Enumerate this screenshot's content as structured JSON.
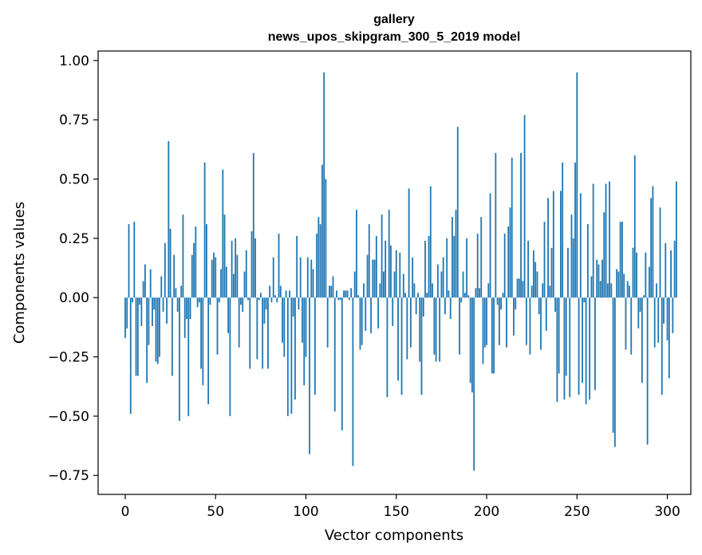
{
  "chart_data": {
    "type": "bar",
    "title_line1": "gallery",
    "title_line2": "news_upos_skipgram_300_5_2019 model",
    "xlabel": "Vector components",
    "ylabel": "Components values",
    "xlim": [
      -15,
      313
    ],
    "ylim": [
      -0.83,
      1.04
    ],
    "xticks": [
      0,
      50,
      100,
      150,
      200,
      250,
      300
    ],
    "xtick_labels": [
      "0",
      "50",
      "100",
      "150",
      "200",
      "250",
      "300"
    ],
    "yticks": [
      -0.75,
      -0.5,
      -0.25,
      0.0,
      0.25,
      0.5,
      0.75,
      1.0
    ],
    "ytick_labels": [
      "−0.75",
      "−0.50",
      "−0.25",
      "0.00",
      "0.25",
      "0.50",
      "0.75",
      "1.00"
    ],
    "bar_color": "#1f77b4",
    "grid": false,
    "values": [
      -0.17,
      -0.13,
      0.31,
      -0.49,
      -0.02,
      0.32,
      -0.33,
      -0.33,
      -0.03,
      -0.12,
      0.07,
      0.14,
      -0.36,
      -0.2,
      0.12,
      -0.12,
      -0.05,
      -0.27,
      -0.28,
      -0.25,
      0.09,
      -0.06,
      0.23,
      -0.11,
      0.66,
      0.29,
      -0.33,
      0.18,
      0.04,
      -0.06,
      -0.52,
      0.05,
      0.35,
      -0.17,
      -0.09,
      -0.5,
      -0.09,
      0.18,
      0.23,
      0.3,
      -0.04,
      -0.02,
      -0.3,
      -0.37,
      0.57,
      0.31,
      -0.45,
      -0.03,
      0.16,
      0.19,
      0.17,
      -0.24,
      -0.02,
      0.12,
      0.54,
      0.35,
      0.13,
      -0.15,
      -0.5,
      0.24,
      0.1,
      0.25,
      0.18,
      -0.21,
      -0.03,
      -0.06,
      0.11,
      0.2,
      -0.01,
      -0.3,
      0.28,
      0.61,
      0.25,
      -0.26,
      -0.01,
      0.02,
      -0.3,
      -0.11,
      -0.05,
      -0.3,
      0.05,
      -0.02,
      0.17,
      0.01,
      -0.02,
      0.27,
      0.05,
      -0.19,
      -0.25,
      0.03,
      -0.5,
      0.03,
      -0.49,
      -0.08,
      -0.43,
      0.26,
      -0.05,
      0.17,
      -0.19,
      -0.37,
      -0.25,
      0.17,
      -0.66,
      0.16,
      0.12,
      -0.41,
      0.27,
      0.34,
      0.31,
      0.56,
      0.95,
      0.5,
      -0.21,
      0.05,
      0.05,
      0.09,
      -0.48,
      0.03,
      -0.01,
      -0.01,
      -0.56,
      0.03,
      0.03,
      0.03,
      -0.01,
      0.04,
      -0.71,
      0.11,
      0.37,
      0.01,
      -0.22,
      -0.2,
      0.06,
      -0.14,
      0.18,
      0.31,
      -0.15,
      0.16,
      0.16,
      0.26,
      -0.13,
      0.06,
      0.35,
      0.11,
      0.24,
      -0.42,
      0.37,
      0.22,
      -0.12,
      0.11,
      0.2,
      -0.35,
      0.19,
      -0.41,
      0.1,
      0.02,
      -0.26,
      0.46,
      -0.21,
      0.17,
      0.06,
      -0.07,
      0.02,
      -0.27,
      -0.41,
      -0.08,
      0.24,
      0.02,
      0.26,
      0.47,
      0.06,
      -0.24,
      -0.27,
      0.14,
      -0.27,
      0.11,
      0.17,
      -0.07,
      0.25,
      0.03,
      -0.09,
      0.34,
      0.26,
      0.37,
      0.72,
      -0.24,
      -0.02,
      0.11,
      0.02,
      0.25,
      0.01,
      -0.36,
      -0.4,
      -0.73,
      0.04,
      0.27,
      0.04,
      0.34,
      -0.28,
      -0.21,
      -0.2,
      0.06,
      0.44,
      -0.32,
      -0.32,
      0.61,
      -0.03,
      -0.2,
      -0.05,
      0.02,
      0.27,
      -0.21,
      0.3,
      0.38,
      0.59,
      -0.16,
      -0.05,
      0.08,
      0.08,
      0.61,
      0.07,
      0.77,
      -0.2,
      0.24,
      -0.24,
      0.05,
      0.2,
      0.15,
      0.11,
      -0.07,
      -0.22,
      0.06,
      0.32,
      -0.14,
      0.42,
      0.05,
      0.21,
      0.45,
      -0.06,
      -0.44,
      -0.32,
      0.45,
      0.57,
      -0.43,
      -0.33,
      0.21,
      -0.42,
      0.35,
      0.25,
      0.57,
      0.95,
      -0.41,
      0.44,
      -0.36,
      -0.02,
      -0.45,
      0.31,
      -0.43,
      0.09,
      0.48,
      -0.39,
      0.16,
      0.14,
      0.07,
      0.16,
      0.36,
      0.48,
      0.06,
      0.49,
      0.06,
      -0.57,
      -0.63,
      0.12,
      0.11,
      0.32,
      0.32,
      0.1,
      -0.22,
      0.07,
      0.05,
      -0.24,
      0.21,
      0.6,
      0.19,
      -0.13,
      -0.06,
      -0.36,
      0.01,
      0.19,
      -0.62,
      0.13,
      0.42,
      0.47,
      -0.21,
      0.06,
      -0.19,
      0.38,
      -0.41,
      -0.11,
      0.23,
      -0.18,
      -0.34,
      0.2,
      -0.15,
      0.24,
      0.49
    ]
  }
}
